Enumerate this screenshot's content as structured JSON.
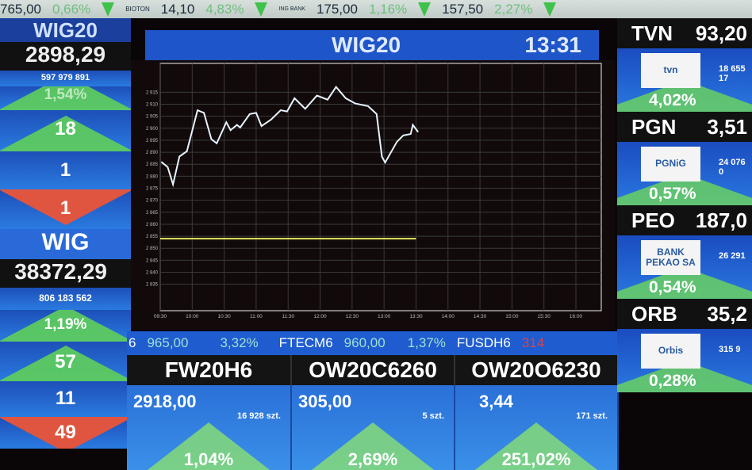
{
  "ticker": [
    {
      "price": "765,00",
      "change": "0,66%"
    },
    {
      "logo": "BIOTON",
      "price": "14,10",
      "change": "4,83%"
    },
    {
      "logo": "ING BANK",
      "price": "175,00",
      "change": "1,16%"
    },
    {
      "price": "157,50",
      "change": "2,27%"
    }
  ],
  "left": [
    {
      "name": "WIG20",
      "value": "2898,29",
      "turnover": "597 979 891",
      "change": "1,54%",
      "advancing": "18",
      "unchanged": "1",
      "declining": "1"
    },
    {
      "name": "WIG",
      "value": "38372,29",
      "turnover": "806 183 562",
      "change": "1,19%",
      "advancing": "57",
      "unchanged": "11",
      "declining": "49"
    }
  ],
  "chart_header": {
    "title": "WIG20",
    "time": "13:31"
  },
  "chart_data": {
    "type": "line",
    "title": "WIG20",
    "x_ticks": [
      "09:30",
      "10:00",
      "10:30",
      "11:00",
      "11:30",
      "12:00",
      "12:30",
      "13:00",
      "13:30",
      "14:00",
      "14:30",
      "15:00",
      "15:30",
      "16:00"
    ],
    "y_ticks": [
      "2 915",
      "2 910",
      "2 905",
      "2 900",
      "2 895",
      "2 890",
      "2 885",
      "2 880",
      "2 875",
      "2 870",
      "2 865",
      "2 860",
      "2 855",
      "2 850",
      "2 845",
      "2 840",
      "2 835"
    ],
    "xlim": [
      "09:30",
      "16:00"
    ],
    "ylim": [
      2824,
      2927
    ],
    "grid": true,
    "series": [
      {
        "color": "#e8f4ff",
        "points": [
          [
            "09:31",
            2886.0
          ],
          [
            "09:37",
            2883.8
          ],
          [
            "09:42",
            2876.6
          ],
          [
            "09:48",
            2888.2
          ],
          [
            "09:55",
            2890.4
          ],
          [
            "10:05",
            2907.5
          ],
          [
            "10:11",
            2906.4
          ],
          [
            "10:18",
            2895.4
          ],
          [
            "10:23",
            2893.7
          ],
          [
            "10:32",
            2902.5
          ],
          [
            "10:36",
            2899.2
          ],
          [
            "10:42",
            2901.4
          ],
          [
            "10:45",
            2900.3
          ],
          [
            "10:54",
            2905.9
          ],
          [
            "11:00",
            2906.4
          ],
          [
            "11:05",
            2900.9
          ],
          [
            "11:14",
            2903.6
          ],
          [
            "11:23",
            2907.5
          ],
          [
            "11:29",
            2907.0
          ],
          [
            "11:36",
            2912.5
          ],
          [
            "11:46",
            2908.1
          ],
          [
            "11:57",
            2913.6
          ],
          [
            "12:07",
            2911.9
          ],
          [
            "12:15",
            2917.2
          ],
          [
            "12:24",
            2912.5
          ],
          [
            "12:33",
            2910.3
          ],
          [
            "12:45",
            2909.2
          ],
          [
            "12:53",
            2905.9
          ],
          [
            "12:58",
            2888.2
          ],
          [
            "13:01",
            2885.7
          ],
          [
            "13:12",
            2894.3
          ],
          [
            "13:18",
            2897.0
          ],
          [
            "13:25",
            2897.6
          ],
          [
            "13:27",
            2901.4
          ],
          [
            "13:32",
            2898.4
          ]
        ]
      }
    ],
    "reference_line": {
      "value": 2854,
      "from": "09:30",
      "to": "13:30",
      "color": "#e8e860"
    }
  },
  "strip": [
    {
      "symbol": "6",
      "price": "965,00",
      "change": "3,32%"
    },
    {
      "symbol": "FTECM6",
      "price": "960,00",
      "change": "1,37%"
    },
    {
      "symbol": "FUSDH6",
      "price": "314"
    }
  ],
  "options": [
    {
      "name": "FW20H6",
      "price": "2918,00",
      "volume": "16 928 szt.",
      "change": "1,04%"
    },
    {
      "name": "OW20C6260",
      "price": "305,00",
      "volume": "5 szt.",
      "change": "2,69%"
    },
    {
      "name": "OW20O6230",
      "price": "3,44",
      "volume": "171 szt.",
      "change": "251,02%"
    }
  ],
  "right": [
    {
      "name": "TVN",
      "price": "93,20",
      "logo": "tvn",
      "volume": "18 655 17",
      "change": "4,02%"
    },
    {
      "name": "PGN",
      "price": "3,51",
      "logo": "PGNiG",
      "volume": "24 076 0",
      "change": "0,57%"
    },
    {
      "name": "PEO",
      "price": "187,0",
      "logo": "BANK PEKAO SA",
      "volume": "26 291",
      "change": "0,54%"
    },
    {
      "name": "ORB",
      "price": "35,2",
      "logo": "Orbis",
      "volume": "315 9",
      "change": "0,28%"
    }
  ]
}
